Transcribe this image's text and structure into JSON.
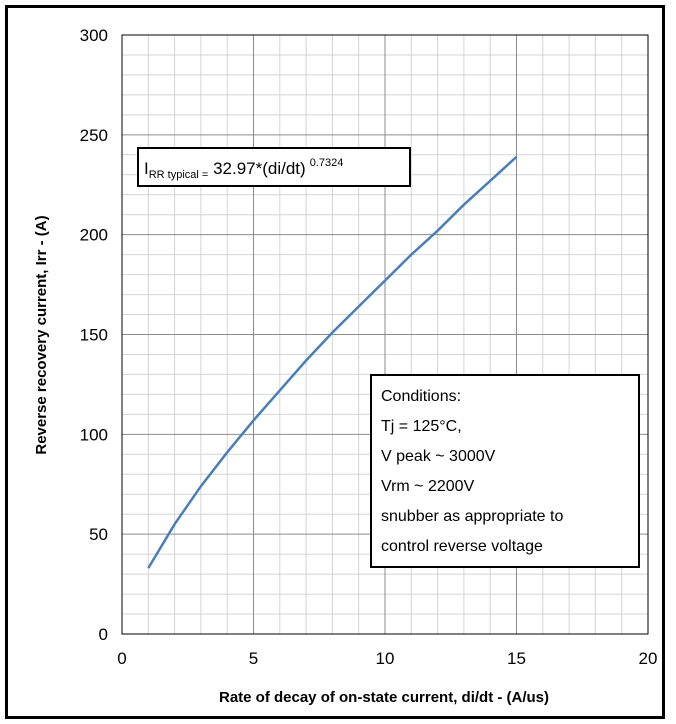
{
  "chart_data": {
    "type": "line",
    "title": "",
    "xlabel": "Rate of decay of on-state current, di/dt - (A/us)",
    "ylabel": "Reverse recovery current, Irr  - (A)",
    "xlim": [
      0,
      20
    ],
    "ylim": [
      0,
      300
    ],
    "x_ticks": [
      "0",
      "5",
      "10",
      "15",
      "20"
    ],
    "y_ticks": [
      "0",
      "50",
      "100",
      "150",
      "200",
      "250",
      "300"
    ],
    "grid": true,
    "minor_grid": true,
    "series": [
      {
        "color": "#4a7ebb",
        "x": [
          1,
          2,
          3,
          4,
          5,
          6,
          7,
          8,
          9,
          10,
          11,
          12,
          13,
          14,
          15
        ],
        "y": [
          33,
          55,
          74,
          91,
          107,
          122,
          137,
          151,
          164,
          177,
          190,
          202,
          215,
          227,
          239
        ]
      }
    ],
    "annotations": {
      "equation": {
        "prefix": "I",
        "subscript": "RR typical =",
        "body": " 32.97*(di/dt)",
        "exponent": "0.7324"
      },
      "conditions": [
        "Conditions:",
        "Tj = 125°C,",
        "V peak ~ 3000V",
        "Vrm ~ 2200V",
        "snubber as appropriate to",
        "control reverse voltage"
      ]
    }
  }
}
